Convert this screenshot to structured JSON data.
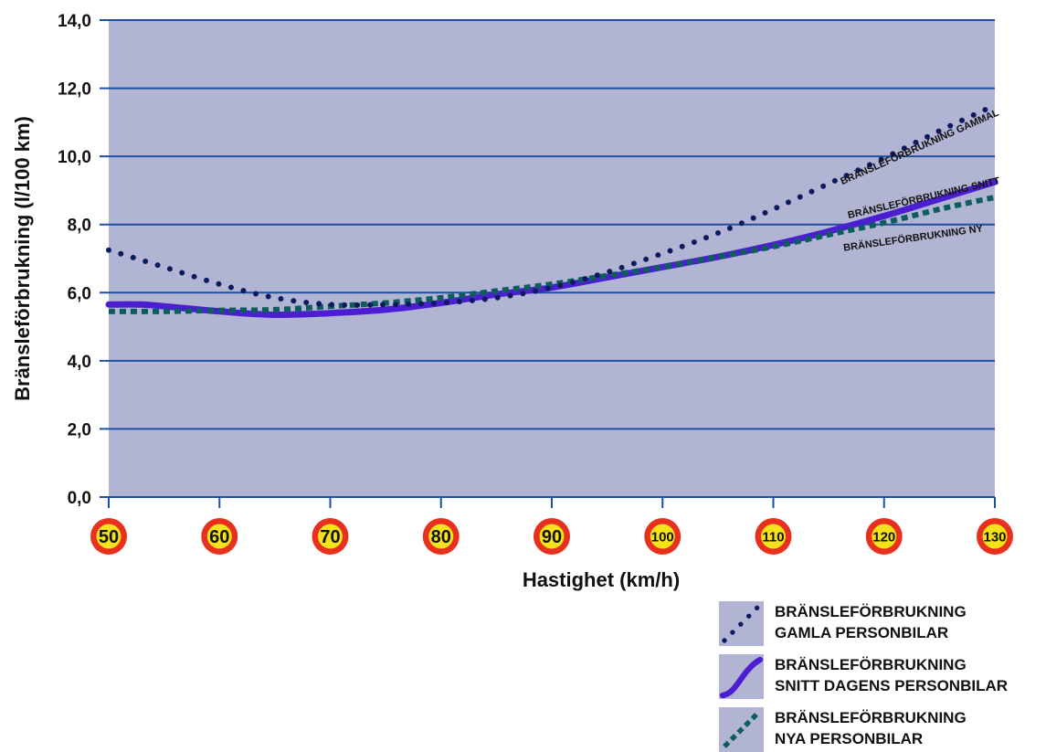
{
  "chart_data": {
    "type": "line",
    "xlabel": "Hastighet (km/h)",
    "ylabel": "Bränsleförbrukning (l/100 km)",
    "xlim": [
      50,
      130
    ],
    "ylim": [
      0,
      14
    ],
    "x_ticks": [
      "50",
      "60",
      "70",
      "80",
      "90",
      "100",
      "110",
      "120",
      "130"
    ],
    "y_ticks": [
      "0,0",
      "2,0",
      "4,0",
      "6,0",
      "8,0",
      "10,0",
      "12,0",
      "14,0"
    ],
    "grid": "horizontal",
    "background_color": "#b1b4d2",
    "gridline_color": "#1f4fa0",
    "series": [
      {
        "key": "gammal",
        "label": "BRÄNSLEFÖRBRUKNING GAMMAL",
        "style": "dotted",
        "color": "#0d1b5e",
        "x": [
          50,
          55,
          60,
          65,
          70,
          75,
          80,
          85,
          90,
          95,
          100,
          105,
          110,
          115,
          120,
          125,
          130
        ],
        "y": [
          7.25,
          6.75,
          6.25,
          5.85,
          5.65,
          5.65,
          5.7,
          5.85,
          6.15,
          6.6,
          7.15,
          7.75,
          8.45,
          9.2,
          9.95,
          10.75,
          11.5
        ]
      },
      {
        "key": "snitt",
        "label": "BRÄNSLEFÖRBRUKNING SNITT",
        "style": "solid",
        "color": "#4b1fd1",
        "x": [
          50,
          53,
          55,
          60,
          65,
          70,
          75,
          80,
          85,
          90,
          95,
          100,
          105,
          110,
          115,
          120,
          125,
          130
        ],
        "y": [
          5.65,
          5.65,
          5.6,
          5.45,
          5.35,
          5.4,
          5.5,
          5.7,
          5.95,
          6.15,
          6.45,
          6.75,
          7.05,
          7.4,
          7.8,
          8.25,
          8.75,
          9.25
        ]
      },
      {
        "key": "ny",
        "label": "BRÄNSLEFÖRBRUKNING NY",
        "style": "dashed",
        "color": "#0e5d5d",
        "x": [
          50,
          55,
          60,
          65,
          70,
          75,
          80,
          85,
          90,
          95,
          100,
          105,
          110,
          115,
          120,
          125,
          130
        ],
        "y": [
          5.45,
          5.45,
          5.48,
          5.5,
          5.6,
          5.7,
          5.85,
          6.05,
          6.25,
          6.5,
          6.75,
          7.05,
          7.35,
          7.7,
          8.05,
          8.45,
          8.8
        ]
      }
    ],
    "legend": {
      "position": "bottom-right",
      "items": [
        {
          "series": "gammal",
          "line1": "BRÄNSLEFÖRBRUKNING",
          "line2": "GAMLA PERSONBILAR"
        },
        {
          "series": "snitt",
          "line1": "BRÄNSLEFÖRBRUKNING",
          "line2": "SNITT DAGENS PERSONBILAR"
        },
        {
          "series": "ny",
          "line1": "BRÄNSLEFÖRBRUKNING",
          "line2": "NYA PERSONBILAR"
        }
      ]
    },
    "speed_sign_colors": {
      "ring": "#e8301e",
      "fill": "#f4e21a"
    }
  }
}
